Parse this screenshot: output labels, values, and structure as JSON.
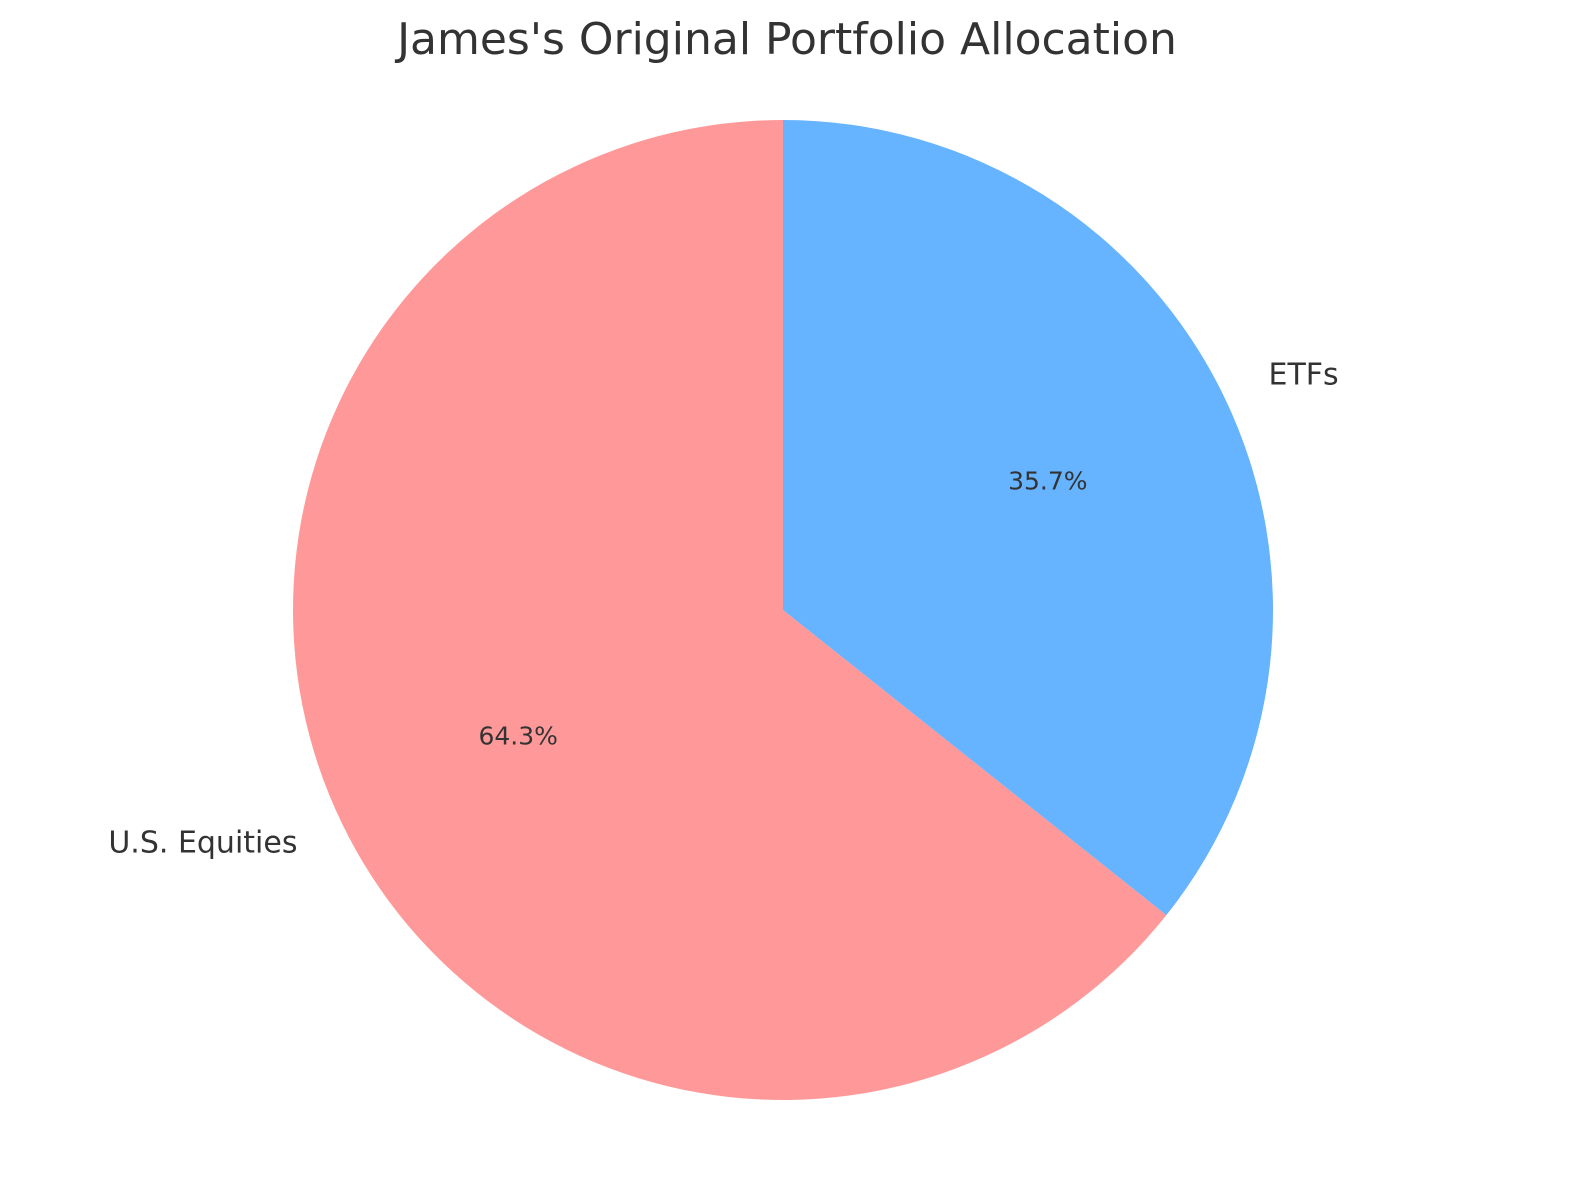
{
  "chart_data": {
    "type": "pie",
    "title": "James's Original Portfolio Allocation",
    "slices": [
      {
        "label": "U.S. Equities",
        "value": 64.3,
        "pct_label": "64.3%",
        "color": "#ff9999"
      },
      {
        "label": "ETFs",
        "value": 35.7,
        "pct_label": "35.7%",
        "color": "#66b3ff"
      }
    ],
    "start_angle_deg": 90,
    "direction": "counterclockwise",
    "legend": "none"
  }
}
